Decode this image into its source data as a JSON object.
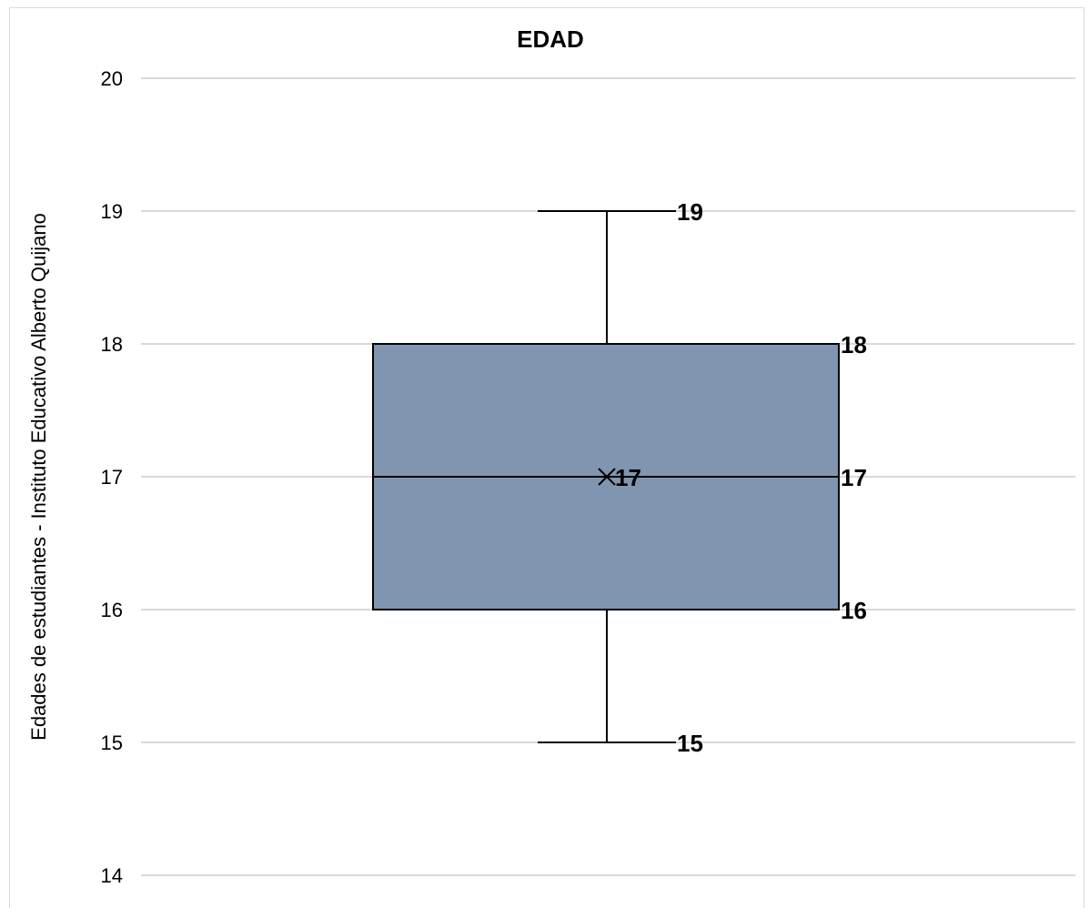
{
  "chart_data": {
    "type": "box",
    "title": "EDAD",
    "xlabel": "",
    "ylabel": "Edades de estudiantes - Instituto Educativo Alberto Quijano",
    "ylim": [
      14,
      20
    ],
    "yticks": [
      "14",
      "15",
      "16",
      "17",
      "18",
      "19",
      "20"
    ],
    "grid": true,
    "legend": "none",
    "series": [
      {
        "min": 15,
        "q1": 16,
        "median": 17,
        "mean": 17,
        "q3": 18,
        "max": 19,
        "labels": {
          "max": "19",
          "q3": "18",
          "mean": "17",
          "median": "17",
          "q1": "16",
          "min": "15"
        }
      }
    ],
    "colors": {
      "box_fill": "#8096b0",
      "box_stroke": "#000000",
      "gridline": "#d9d9d9"
    }
  }
}
